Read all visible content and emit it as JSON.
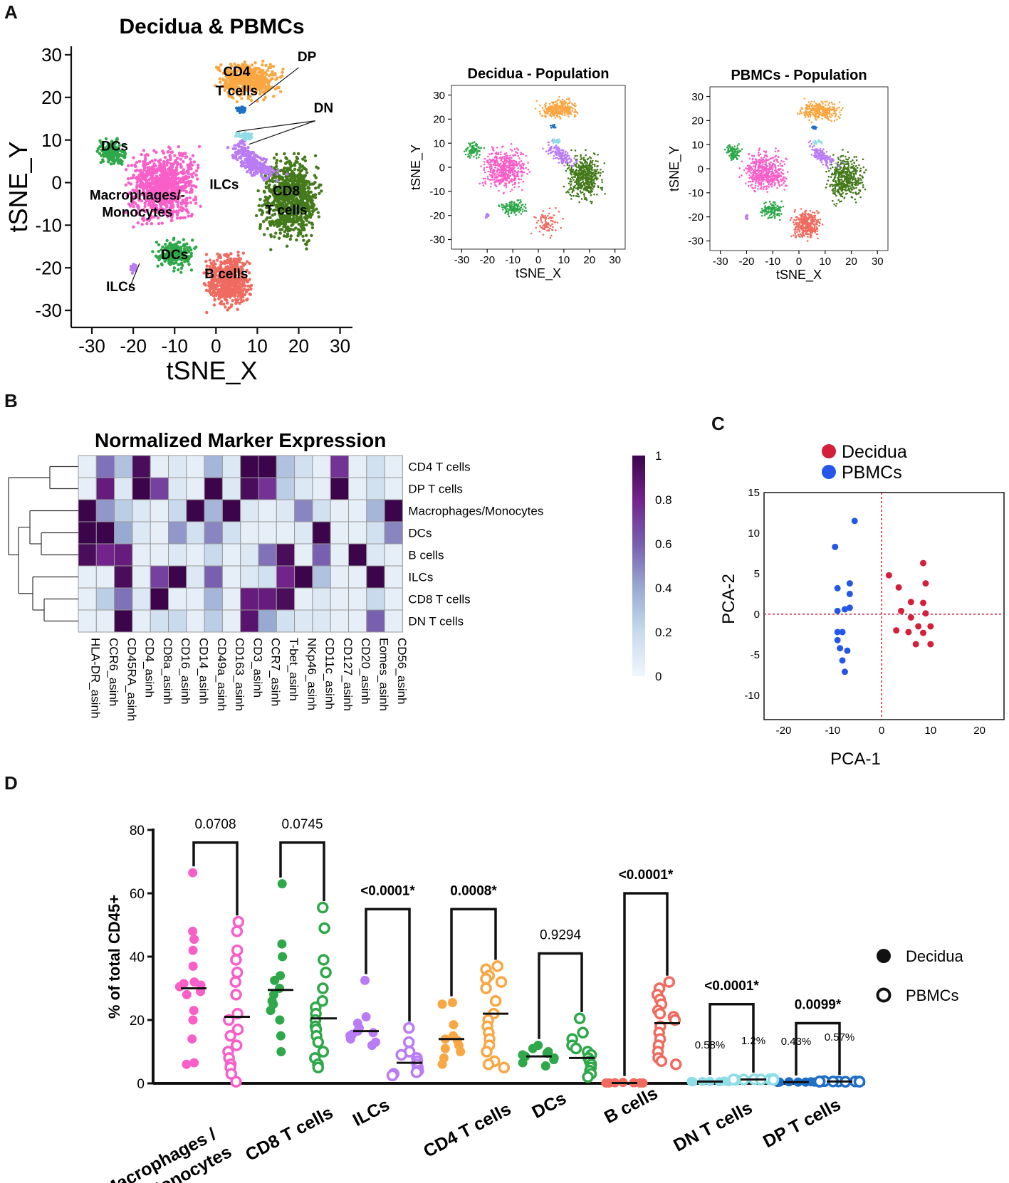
{
  "panel_letters": {
    "a": "A",
    "b": "B",
    "c": "C",
    "d": "D"
  },
  "colors": {
    "cd4": "#f9a743",
    "dp": "#1f6fc5",
    "dn": "#8fdde6",
    "ilc": "#b97cf5",
    "mac": "#f95fc8",
    "dc": "#2fa84a",
    "cd8": "#447a1c",
    "bcell": "#ef6b60",
    "decidua": "#d41f3a",
    "pbmc": "#2457e8"
  },
  "chart_data": [
    {
      "id": "tsne_main",
      "type": "scatter",
      "title": "Decidua & PBMCs",
      "xlabel": "tSNE_X",
      "ylabel": "tSNE_Y",
      "xlim": [
        -35,
        33
      ],
      "ylim": [
        -34,
        32
      ],
      "xticks": [
        "-30",
        "-20",
        "-10",
        "0",
        "10",
        "20",
        "30"
      ],
      "yticks": [
        "30",
        "20",
        "10",
        "0",
        "-10",
        "-20",
        "-30"
      ],
      "labels": [
        {
          "text": "CD4",
          "x": 5,
          "y": 25
        },
        {
          "text": "T cells",
          "x": 5,
          "y": 20.5
        },
        {
          "text": "DP",
          "x": 22,
          "y": 28.5
        },
        {
          "text": "DN",
          "x": 26,
          "y": 16.5
        },
        {
          "text": "DCs",
          "x": -24.5,
          "y": 7.5
        },
        {
          "text": "ILCs",
          "x": 2,
          "y": -1.5
        },
        {
          "text": "CD8",
          "x": 17,
          "y": -3
        },
        {
          "text": "T cells",
          "x": 17,
          "y": -7.5
        },
        {
          "text": "Macrophages/-",
          "x": -19,
          "y": -4
        },
        {
          "text": "Monocytes",
          "x": -19,
          "y": -8
        },
        {
          "text": "DCs",
          "x": -10,
          "y": -18
        },
        {
          "text": "B cells",
          "x": 2.5,
          "y": -22.5
        },
        {
          "text": "ILCs",
          "x": -23,
          "y": -25.5
        }
      ]
    },
    {
      "id": "tsne_decidua",
      "type": "scatter",
      "title": "Decidua - Population",
      "xlabel": "tSNE_X",
      "ylabel": "tSNE_Y",
      "xlim": [
        -34,
        34
      ],
      "ylim": [
        -34,
        34
      ],
      "xticks": [
        "-30",
        "-20",
        "-10",
        "0",
        "10",
        "20",
        "30"
      ],
      "yticks": [
        "30",
        "20",
        "10",
        "0",
        "-10",
        "-20",
        "-30"
      ]
    },
    {
      "id": "tsne_pbmc",
      "type": "scatter",
      "title": "PBMCs - Population",
      "xlabel": "tSNE_X",
      "ylabel": "tSNE_Y",
      "xlim": [
        -34,
        34
      ],
      "ylim": [
        -34,
        34
      ],
      "xticks": [
        "-30",
        "-20",
        "-10",
        "0",
        "10",
        "20",
        "30"
      ],
      "yticks": [
        "30",
        "20",
        "10",
        "0",
        "-10",
        "-20",
        "-30"
      ]
    },
    {
      "id": "heatmap",
      "type": "heatmap",
      "title": "Normalized Marker Expression",
      "rows": [
        "CD4 T cells",
        "DP T cells",
        "Macrophages/Monocytes",
        "DCs",
        "B cells",
        "ILCs",
        "CD8 T cells",
        "DN T cells"
      ],
      "columns": [
        "HLA-DR_asinh",
        "CCR6_asinh",
        "CD45RA_asinh",
        "CD4_asinh",
        "CD8a_asinh",
        "CD16_asinh",
        "CD14_asinh",
        "CD49a_asinh",
        "CD163_asinh",
        "CD3_asinh",
        "CCR7_asinh",
        "T-bet_asinh",
        "NKp46_asinh",
        "CD11c_asinh",
        "CD127_asinh",
        "CD20_asinh",
        "Eomes_asinh",
        "CD56_asinh"
      ],
      "values": [
        [
          0.05,
          0.55,
          0.3,
          0.95,
          0.05,
          0.1,
          0.05,
          0.35,
          0.1,
          1,
          1,
          0.3,
          0.15,
          0.05,
          0.75,
          0.05,
          0.15,
          0.05
        ],
        [
          0.05,
          0.85,
          0.1,
          1,
          0.7,
          0.1,
          0.05,
          1,
          0.1,
          0.95,
          0.75,
          0.25,
          0.1,
          0.05,
          1,
          0.05,
          0.15,
          0.05
        ],
        [
          1,
          0.45,
          0.25,
          0.1,
          0.05,
          0.2,
          1,
          0.35,
          1,
          0.1,
          0.05,
          0.1,
          0.5,
          0.15,
          0.05,
          0.05,
          0.35,
          1
        ],
        [
          1,
          1,
          0.4,
          0.1,
          0.05,
          0.45,
          0.15,
          0.5,
          0.15,
          0.05,
          0.05,
          0.05,
          0.1,
          1,
          0.05,
          0.05,
          0.15,
          0.5
        ],
        [
          0.95,
          0.8,
          0.85,
          0.05,
          0.05,
          0.1,
          0.05,
          0.2,
          0.05,
          0.1,
          0.55,
          0.95,
          0.05,
          0.6,
          0.05,
          1,
          0.1,
          0.05
        ],
        [
          0.05,
          0.05,
          0.95,
          0.05,
          0.7,
          1,
          0.1,
          0.6,
          0.05,
          0.1,
          0.15,
          0.8,
          1,
          0.3,
          0.05,
          0.05,
          1,
          0.05
        ],
        [
          0.05,
          0.25,
          0.55,
          0.1,
          1,
          0.05,
          0.05,
          0.35,
          0.05,
          0.85,
          0.85,
          0.95,
          0.05,
          0.1,
          0.05,
          0.05,
          0.2,
          0.05
        ],
        [
          0.05,
          0.05,
          1,
          0.05,
          0.15,
          0.2,
          0.05,
          0.25,
          0.05,
          0.9,
          0.4,
          0.15,
          0.1,
          0.1,
          0.05,
          0.05,
          0.6,
          0.05
        ]
      ],
      "colorbar_ticks": [
        "1",
        "0.8",
        "0.6",
        "0.4",
        "0.2",
        "0"
      ],
      "colorbar_range": [
        0,
        1
      ]
    },
    {
      "id": "pca",
      "type": "scatter",
      "xlabel": "PCA-1",
      "ylabel": "PCA-2",
      "xlim": [
        -24,
        25
      ],
      "ylim": [
        -13,
        15
      ],
      "xticks": [
        "-20",
        "-10",
        "0",
        "10",
        "20"
      ],
      "yticks": [
        "15",
        "10",
        "5",
        "0",
        "-5",
        "-10"
      ],
      "legend": [
        "Decidua",
        "PBMCs"
      ],
      "series": [
        {
          "name": "Decidua",
          "points": [
            [
              1.5,
              4.8
            ],
            [
              3.5,
              3.3
            ],
            [
              8.5,
              6.3
            ],
            [
              9,
              3.8
            ],
            [
              6,
              1.5
            ],
            [
              8.5,
              1.4
            ],
            [
              4,
              0.4
            ],
            [
              6,
              -0.4
            ],
            [
              9,
              0.1
            ],
            [
              7.5,
              -1.5
            ],
            [
              10,
              -1.5
            ],
            [
              3,
              -2
            ],
            [
              5.5,
              -2.2
            ],
            [
              8.5,
              -2.3
            ],
            [
              7,
              -3.7
            ],
            [
              10,
              -3.7
            ]
          ]
        },
        {
          "name": "PBMCs",
          "points": [
            [
              -5.5,
              11.5
            ],
            [
              -9.5,
              8.3
            ],
            [
              -6.5,
              3.8
            ],
            [
              -9,
              3.2
            ],
            [
              -6.5,
              2.5
            ],
            [
              -7.5,
              0.6
            ],
            [
              -9,
              0.4
            ],
            [
              -6.5,
              0.8
            ],
            [
              -9,
              -2.2
            ],
            [
              -8,
              -2.2
            ],
            [
              -9,
              -3.2
            ],
            [
              -8.5,
              -4.2
            ],
            [
              -7,
              -4.5
            ],
            [
              -8,
              -5.7
            ],
            [
              -7.5,
              -7.1
            ]
          ]
        }
      ]
    },
    {
      "id": "dotplot",
      "type": "scatter",
      "ylabel": "% of total CD45+",
      "ylim": [
        0,
        80
      ],
      "yticks": [
        "80",
        "60",
        "40",
        "20",
        "0"
      ],
      "categories": [
        "Macrophages / Monocytes",
        "CD8 T cells",
        "ILCs",
        "CD4 T cells",
        "DCs",
        "B cells",
        "DN T cells",
        "DP T cells"
      ],
      "legend": [
        "Decidua",
        "PBMCs"
      ],
      "decidua": [
        [
          66.5,
          48,
          45.5,
          42,
          37,
          32,
          31.5,
          31,
          30.5,
          29,
          28,
          23,
          20,
          14,
          6.5,
          6
        ],
        [
          63,
          44,
          40,
          34,
          32.5,
          30,
          28,
          26,
          25,
          23,
          20,
          15,
          10
        ],
        [
          32.5,
          21,
          19,
          17.5,
          16.5,
          16,
          15.5,
          15,
          14,
          13,
          12
        ],
        [
          25.5,
          25,
          18.5,
          15,
          14,
          13.5,
          12,
          11,
          10,
          8,
          6
        ],
        [
          12,
          11,
          10,
          9.5,
          9,
          8.5,
          8,
          7.5,
          6.5,
          5.5
        ],
        [
          0.3,
          0.2,
          0.2,
          0.1,
          0.1,
          0.1,
          0.1,
          0.1
        ],
        [
          0.6,
          0.6,
          0.5,
          0.5,
          0.7,
          0.6,
          0.5,
          0.6
        ],
        [
          0.4,
          0.5,
          0.4,
          0.4,
          0.5,
          0.3,
          0.4,
          0.4
        ]
      ],
      "pbmc": [
        [
          51,
          48,
          42,
          39,
          35,
          32,
          28,
          22,
          20,
          17,
          15,
          12,
          10,
          8,
          6,
          5,
          3,
          0.5
        ],
        [
          55.5,
          49,
          39,
          35,
          30,
          26,
          24,
          22,
          20,
          18,
          17,
          15,
          13,
          10,
          8,
          6,
          5
        ],
        [
          17.5,
          13,
          10,
          9,
          8,
          7,
          6,
          5,
          4,
          3.5,
          3,
          2.5
        ],
        [
          37,
          36,
          34,
          33,
          32,
          30,
          26,
          22,
          20,
          18,
          16,
          14,
          12,
          10,
          7,
          6,
          5
        ],
        [
          20.5,
          16,
          14,
          12,
          11,
          10,
          9,
          8,
          7,
          6,
          5,
          4,
          3,
          2
        ],
        [
          32,
          30,
          28,
          26.5,
          25,
          23,
          22,
          21,
          20,
          18,
          16,
          14,
          12,
          10,
          8,
          7,
          6
        ],
        [
          1.3,
          1.2,
          1.2,
          1.1,
          1.3,
          1.2,
          1.4,
          1.2,
          1.1,
          1.2
        ],
        [
          0.6,
          0.6,
          0.5,
          0.7,
          0.6,
          0.5,
          0.6,
          0.6,
          0.5,
          0.6
        ]
      ],
      "decidua_median": [
        30,
        29.5,
        16.5,
        14,
        8.5,
        0.1,
        0.55,
        0.4
      ],
      "pbmc_median": [
        21,
        20.5,
        6.5,
        22,
        8,
        19,
        1.2,
        0.6
      ],
      "pvalues": [
        "0.0708",
        "0.0745",
        "<0.0001*",
        "0.0008*",
        "0.9294",
        "<0.0001*",
        "<0.0001*",
        "0.0099*"
      ],
      "pvalue_bold": [
        false,
        false,
        true,
        true,
        false,
        true,
        true,
        true
      ],
      "bracket_level": [
        76,
        76,
        55,
        55,
        41,
        60,
        25,
        19
      ],
      "pct_labels": [
        {
          "cat": 6,
          "group": "decidua",
          "text": "0.58%"
        },
        {
          "cat": 6,
          "group": "pbmc",
          "text": "1.2%"
        },
        {
          "cat": 7,
          "group": "decidua",
          "text": "0.43%"
        },
        {
          "cat": 7,
          "group": "pbmc",
          "text": "0.57%"
        }
      ]
    }
  ]
}
